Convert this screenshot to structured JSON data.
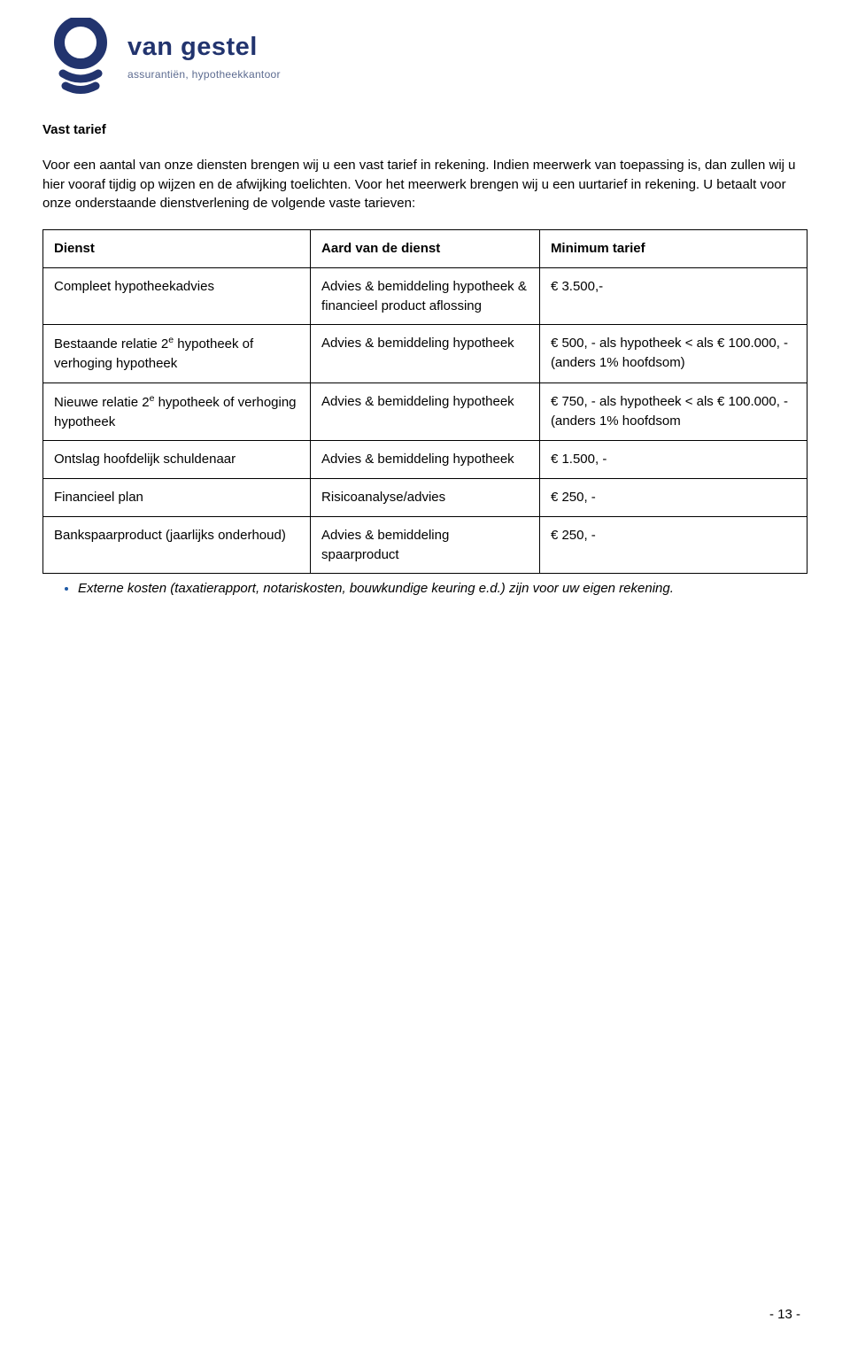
{
  "colors": {
    "brand_navy": "#22346e",
    "brand_sub": "#5c6b90",
    "bullet_blue": "#1f5aa6",
    "text": "#000000",
    "background": "#ffffff",
    "table_border": "#000000"
  },
  "logo": {
    "title": "van gestel",
    "subtitle": "assurantiën, hypotheekkantoor"
  },
  "heading": "Vast tarief",
  "intro": "Voor een aantal van onze diensten brengen wij u een vast tarief in rekening. Indien meerwerk van toepassing is, dan zullen wij u hier vooraf tijdig op wijzen en de afwijking toelichten. Voor het meerwerk brengen wij u een uurtarief in rekening. U betaalt voor onze onderstaande dienstverlening de volgende vaste tarieven:",
  "table": {
    "columns": [
      "Dienst",
      "Aard van de dienst",
      "Minimum tarief"
    ],
    "col_widths_pct": [
      35,
      30,
      35
    ],
    "rows": [
      {
        "dienst": "Compleet hypotheekadvies",
        "aard": "Advies & bemiddeling hypotheek & financieel product aflossing",
        "tarief": "€ 3.500,-"
      },
      {
        "dienst_html": "Bestaande relatie 2<sup>e</sup> hypotheek of verhoging hypotheek",
        "aard": "Advies & bemiddeling hypotheek",
        "tarief": "€ 500, - als hypotheek < als € 100.000, - (anders 1% hoofdsom)"
      },
      {
        "dienst_html": "Nieuwe relatie 2<sup>e</sup> hypotheek of verhoging hypotheek",
        "aard": "Advies & bemiddeling hypotheek",
        "tarief": "€ 750, - als hypotheek < als € 100.000, - (anders 1% hoofdsom"
      },
      {
        "dienst": "Ontslag hoofdelijk schuldenaar",
        "aard": "Advies & bemiddeling hypotheek",
        "tarief": "€ 1.500, -"
      },
      {
        "dienst": "Financieel plan",
        "aard": "Risicoanalyse/advies",
        "tarief": "€ 250, -"
      },
      {
        "dienst": "Bankspaarproduct (jaarlijks onderhoud)",
        "aard": "Advies & bemiddeling spaarproduct",
        "tarief": "€ 250, -"
      }
    ]
  },
  "footnote": "Externe kosten (taxatierapport, notariskosten, bouwkundige keuring e.d.) zijn voor uw eigen rekening.",
  "page_number": "- 13 -"
}
